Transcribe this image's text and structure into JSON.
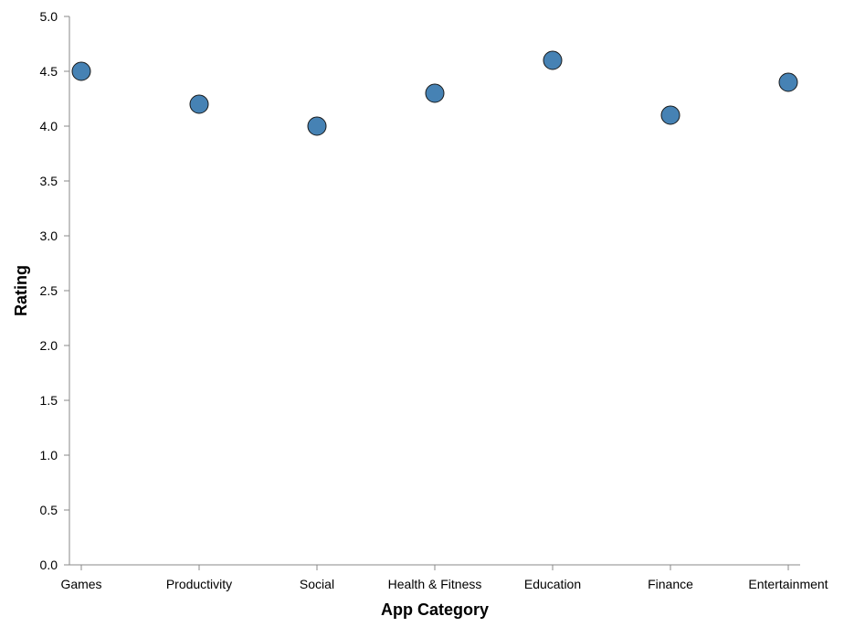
{
  "chart_data": {
    "type": "scatter",
    "title": "",
    "xlabel": "App Category",
    "ylabel": "Rating",
    "categories": [
      "Games",
      "Productivity",
      "Social",
      "Health & Fitness",
      "Education",
      "Finance",
      "Entertainment"
    ],
    "series": [
      {
        "values": [
          4.5,
          4.2,
          4.0,
          4.3,
          4.6,
          4.1,
          4.4
        ]
      }
    ],
    "ylim": [
      0,
      5
    ],
    "yticks": [
      "0.0",
      "0.5",
      "1.0",
      "1.5",
      "2.0",
      "2.5",
      "3.0",
      "3.5",
      "4.0",
      "4.5",
      "5.0"
    ],
    "grid": false,
    "legend": "none",
    "point_color": "#4682b4"
  }
}
